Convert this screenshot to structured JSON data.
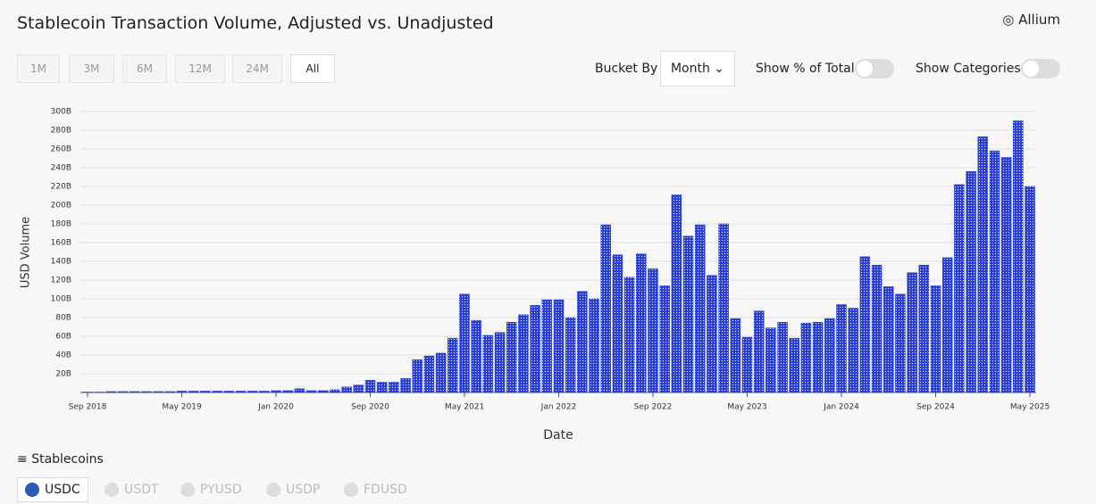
{
  "header": {
    "title": "Stablecoin Transaction Volume, Adjusted vs. Unadjusted",
    "brand": "Allium"
  },
  "controls": {
    "ranges": [
      "1M",
      "3M",
      "6M",
      "12M",
      "24M",
      "All"
    ],
    "bucket_label": "Bucket By",
    "bucket_value": "Month",
    "toggles": [
      "Show % of Total",
      "Show Categories"
    ]
  },
  "chart_data": {
    "type": "bar",
    "x_label": "Date",
    "y_label": "USD Volume",
    "color": "#2a3fd9",
    "grid": true,
    "categories": [
      "Sep 2018",
      null,
      null,
      null,
      null,
      null,
      null,
      null,
      "May 2019",
      null,
      null,
      null,
      null,
      null,
      null,
      null,
      "Jan 2020",
      null,
      null,
      null,
      null,
      null,
      null,
      null,
      "Sep 2020",
      null,
      null,
      null,
      null,
      null,
      null,
      null,
      "May 2021",
      null,
      null,
      null,
      null,
      null,
      null,
      null,
      "Jan 2022",
      null,
      null,
      null,
      null,
      null,
      null,
      null,
      "Sep 2022",
      null,
      null,
      null,
      null,
      null,
      null,
      null,
      "May 2023",
      null,
      null,
      null,
      null,
      null,
      null,
      null,
      "Jan 2024",
      null,
      null,
      null,
      null,
      null,
      null,
      null,
      "Sep 2024",
      null,
      null,
      null,
      null,
      null,
      null,
      null,
      "May 2025"
    ],
    "values": [
      0.5,
      0.5,
      1,
      1,
      1,
      1,
      1,
      1,
      1.5,
      1.5,
      1.5,
      1.5,
      1.5,
      1.5,
      1.5,
      1.5,
      2,
      2,
      4,
      2,
      2,
      3,
      6,
      8,
      13,
      11,
      11,
      15,
      35,
      39,
      42,
      58,
      105,
      77,
      61,
      64,
      75,
      83,
      93,
      99,
      99,
      80,
      108,
      100,
      179,
      147,
      123,
      148,
      132,
      114,
      211,
      167,
      179,
      125,
      180,
      79,
      59,
      87,
      69,
      75,
      58,
      74,
      75,
      79,
      94,
      90,
      145,
      136,
      113,
      105,
      128,
      136,
      114,
      144,
      222,
      236,
      273,
      258,
      251,
      290,
      220
    ],
    "ylim": [
      0,
      300
    ],
    "yticks": [
      {
        "value": 20,
        "label": "20B"
      },
      {
        "value": 40,
        "label": "40B"
      },
      {
        "value": 60,
        "label": "60B"
      },
      {
        "value": 80,
        "label": "80B"
      },
      {
        "value": 100,
        "label": "100B"
      },
      {
        "value": 120,
        "label": "120B"
      },
      {
        "value": 140,
        "label": "140B"
      },
      {
        "value": 160,
        "label": "160B"
      },
      {
        "value": 180,
        "label": "180B"
      },
      {
        "value": 200,
        "label": "200B"
      },
      {
        "value": 220,
        "label": "220B"
      },
      {
        "value": 240,
        "label": "240B"
      },
      {
        "value": 260,
        "label": "260B"
      },
      {
        "value": 280,
        "label": "280B"
      },
      {
        "value": 300,
        "label": "300B"
      }
    ]
  },
  "legend": {
    "title": "Stablecoins",
    "items": [
      "USDC",
      "USDT",
      "PYUSD",
      "USDP",
      "FDUSD"
    ]
  }
}
